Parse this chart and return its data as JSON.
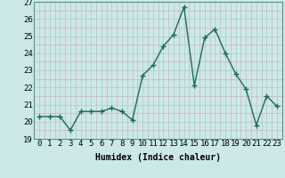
{
  "x": [
    0,
    1,
    2,
    3,
    4,
    5,
    6,
    7,
    8,
    9,
    10,
    11,
    12,
    13,
    14,
    15,
    16,
    17,
    18,
    19,
    20,
    21,
    22,
    23
  ],
  "y": [
    20.3,
    20.3,
    20.3,
    19.5,
    20.6,
    20.6,
    20.6,
    20.8,
    20.6,
    20.1,
    22.7,
    23.3,
    24.4,
    25.1,
    26.7,
    22.1,
    24.9,
    25.4,
    24.0,
    22.8,
    21.9,
    19.8,
    21.5,
    20.9
  ],
  "line_color": "#1a6b5a",
  "marker": "+",
  "bg_color": "#cce8e8",
  "major_grid_color": "#aacaca",
  "minor_grid_color": "#d4a8a8",
  "xlabel": "Humidex (Indice chaleur)",
  "ylim": [
    19,
    27
  ],
  "yticks": [
    19,
    20,
    21,
    22,
    23,
    24,
    25,
    26,
    27
  ],
  "xtick_labels": [
    "0",
    "1",
    "2",
    "3",
    "4",
    "5",
    "6",
    "7",
    "8",
    "9",
    "10",
    "11",
    "12",
    "13",
    "14",
    "15",
    "16",
    "17",
    "18",
    "19",
    "20",
    "21",
    "22",
    "23"
  ],
  "xlabel_fontsize": 7,
  "tick_fontsize": 6.5,
  "line_width": 1.0,
  "marker_size": 4
}
